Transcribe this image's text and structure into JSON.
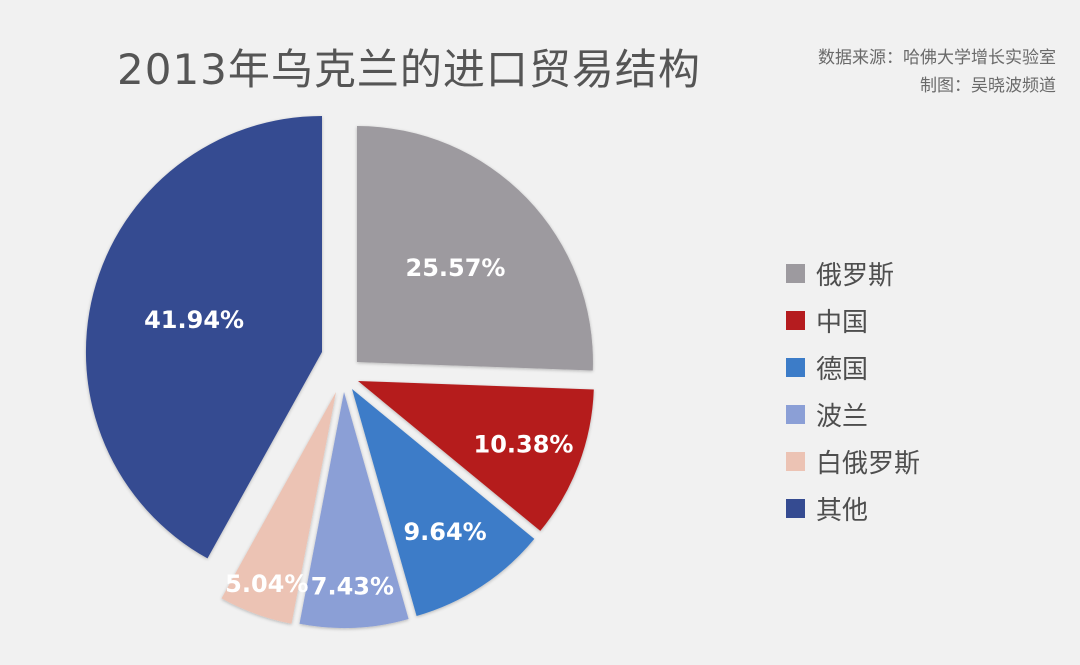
{
  "title": "2013年乌克兰的进口贸易结构",
  "source": {
    "line1": "数据来源：哈佛大学增长实验室",
    "line2": "制图：吴晓波频道"
  },
  "legend": {
    "items": [
      {
        "label": "俄罗斯",
        "color": "#9d9a9f"
      },
      {
        "label": "中国",
        "color": "#b51c1f"
      },
      {
        "label": "德国",
        "color": "#3c7cc8"
      },
      {
        "label": "波兰",
        "color": "#8b9fd6"
      },
      {
        "label": "白俄罗斯",
        "color": "#ecc3b4"
      },
      {
        "label": "其他",
        "color": "#354b91"
      }
    ]
  },
  "chart_data": {
    "type": "pie",
    "title": "2013年乌克兰的进口贸易结构",
    "categories": [
      "俄罗斯",
      "中国",
      "德国",
      "波兰",
      "白俄罗斯",
      "其他"
    ],
    "values": [
      25.57,
      10.38,
      9.64,
      7.43,
      5.04,
      41.94
    ],
    "labels": [
      "25.57%",
      "10.38%",
      "9.64%",
      "7.43%",
      "5.04%",
      "41.94%"
    ],
    "colors": [
      "#9d9a9f",
      "#b51c1f",
      "#3c7cc8",
      "#8b9fd6",
      "#ecc3b4",
      "#354b91"
    ],
    "start_angle": "12 o'clock",
    "direction": "clockwise",
    "exploded": true,
    "legend_position": "right",
    "unit": "%"
  }
}
